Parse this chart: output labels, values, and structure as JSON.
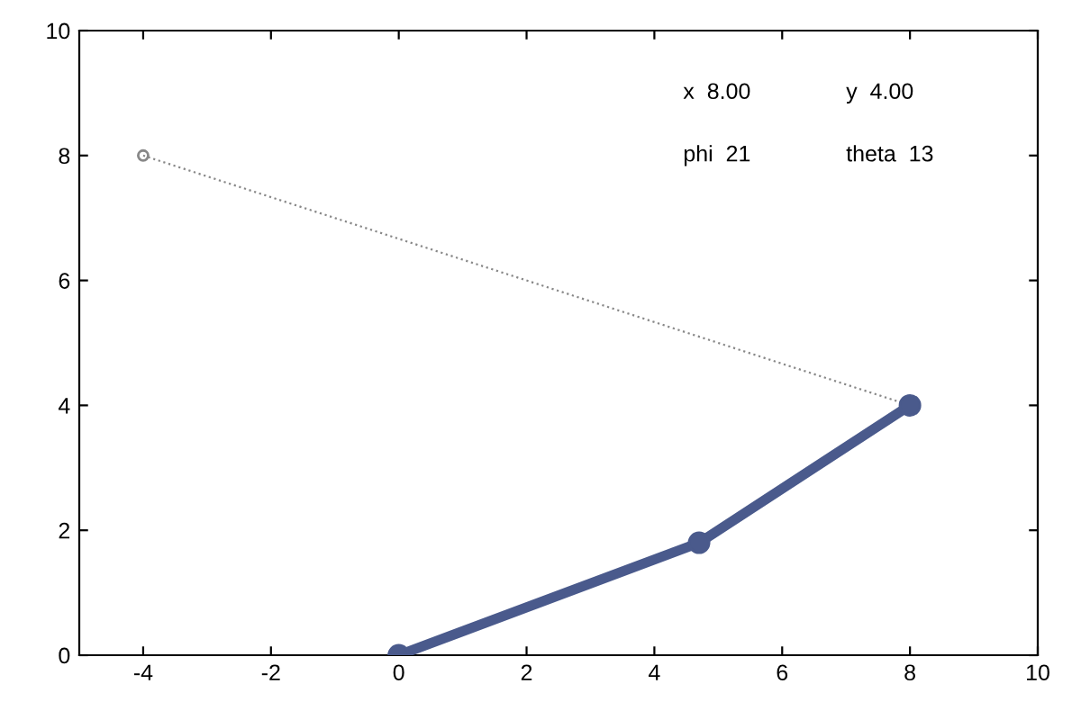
{
  "chart_data": {
    "type": "line",
    "x": [
      0,
      4.7,
      8
    ],
    "xlim": [
      -5,
      10
    ],
    "xticks": [
      -4,
      -2,
      0,
      2,
      4,
      6,
      8,
      10
    ],
    "ylim": [
      0,
      10
    ],
    "yticks": [
      0,
      2,
      4,
      6,
      8,
      10
    ],
    "grid": false,
    "legend": false,
    "marker": "circle",
    "series": [
      {
        "color": "#4a5a8c",
        "values": [
          0,
          1.8,
          4
        ],
        "line_style": "solid"
      },
      {
        "color": "#888888",
        "x": [
          -4,
          8
        ],
        "values": [
          8,
          4
        ],
        "line_style": "dotted"
      }
    ],
    "annotations": [
      "x  8.00",
      "y  4.00",
      "phi  21",
      "theta  13"
    ]
  }
}
